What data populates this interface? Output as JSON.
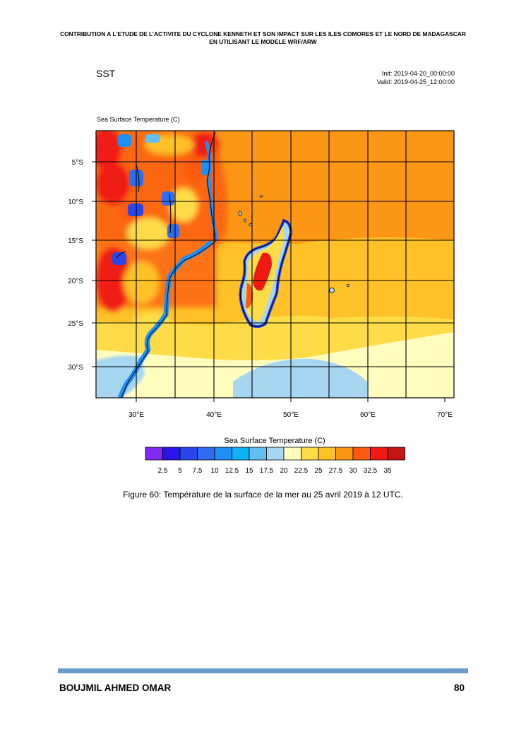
{
  "header": {
    "line1": "CONTRIBUTION A L’ETUDE DE L’ACTIVITE DU CYCLONE KENNETH ET SON IMPACT SUR LES ILES COMORES ET LE NORD DE MADAGASCAR",
    "line2": "EN UTILISANT LE MODELE WRF/ARW"
  },
  "figure": {
    "plot_name": "SST",
    "init": "Init: 2019-04-20_00:00:00",
    "valid": "Valid: 2019-04-25_12:00:00",
    "field_label": "Sea Surface Temperature   (C)",
    "colorbar_title": "Sea Surface Temperature  (C)",
    "colors": {
      "land": "#ffffff",
      "coast": "#000000",
      "grid": "#000000"
    }
  },
  "chart_data": {
    "type": "heatmap",
    "title": "Sea Surface Temperature (C)",
    "xlabel": "",
    "ylabel": "",
    "x_ticks": [
      "30°E",
      "40°E",
      "50°E",
      "60°E",
      "70°E"
    ],
    "y_ticks": [
      "5°S",
      "10°S",
      "15°S",
      "20°S",
      "25°S",
      "30°S"
    ],
    "xlim": [
      25,
      71
    ],
    "ylim": [
      -33.8,
      -1.3
    ],
    "colorbar": {
      "levels": [
        "2.5",
        "5",
        "7.5",
        "10",
        "12.5",
        "15",
        "17.5",
        "20",
        "22.5",
        "25",
        "27.5",
        "30",
        "32.5",
        "35"
      ],
      "colors": [
        "#7d2cf0",
        "#2a14e6",
        "#2a46e8",
        "#2f6df0",
        "#1f8ef5",
        "#0fb1f5",
        "#62bff0",
        "#a6d6f0",
        "#fffcbe",
        "#fedc48",
        "#fec128",
        "#fc9615",
        "#fb5a10",
        "#f01a15",
        "#c21515"
      ]
    },
    "regions": [
      {
        "name": "open ocean east of Madagascar",
        "value_range": "27.5–30"
      },
      {
        "name": "northern Mozambique Channel",
        "value_range": "30–32.5"
      },
      {
        "name": "ocean south of 20°S",
        "value_range": "25–27.5"
      },
      {
        "name": "southern band near 27–31°S",
        "value_range": "22.5–25"
      },
      {
        "name": "far south near 31–34°S",
        "value_range": "20–22.5"
      },
      {
        "name": "southeast of 45°E, 30–34°S",
        "value_range": "17.5–20"
      }
    ]
  },
  "caption": "Figure 60: Température de la surface de la mer au 25 avril 2019 à 12 UTC.",
  "footer": {
    "author": "BOUJMIL AHMED OMAR",
    "page": "80"
  }
}
